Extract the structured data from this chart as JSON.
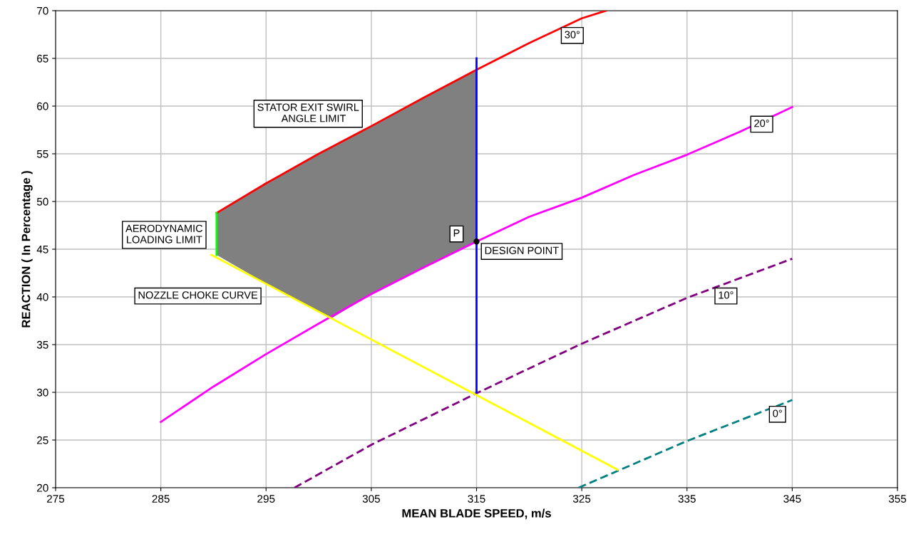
{
  "chart_data": {
    "type": "line",
    "xlabel": "MEAN BLADE SPEED, m/s",
    "ylabel": "REACTION ( In Percentage )",
    "xlim": [
      275,
      355
    ],
    "xticks": [
      275,
      285,
      295,
      305,
      315,
      325,
      335,
      345,
      355
    ],
    "ylim": [
      20,
      70
    ],
    "yticks": [
      20,
      25,
      30,
      35,
      40,
      45,
      50,
      55,
      60,
      65,
      70
    ],
    "grid": true,
    "legend": false,
    "series": [
      {
        "type": "area",
        "color": "#808080",
        "x": [
          290.3,
          295,
          300,
          305,
          310,
          315,
          315,
          310,
          305,
          301.3,
          300,
          295,
          290.3
        ],
        "values": [
          48.8,
          51.9,
          55.0,
          57.9,
          60.9,
          63.8,
          45.8,
          43.1,
          40.3,
          37.8,
          38.5,
          41.4,
          44.4
        ]
      },
      {
        "color": "#ff0000",
        "line_style": "solid",
        "x": [
          290.3,
          295,
          300,
          305,
          310,
          315,
          320,
          325,
          327.3
        ],
        "values": [
          48.8,
          51.9,
          55.0,
          57.9,
          60.9,
          63.8,
          66.6,
          69.2,
          70
        ]
      },
      {
        "color": "#ff00ff",
        "line_style": "solid",
        "x": [
          285,
          290,
          295,
          300,
          305,
          310,
          315,
          320,
          325,
          330,
          335,
          340,
          345
        ],
        "values": [
          26.9,
          30.6,
          34.0,
          37.2,
          40.3,
          43.1,
          45.8,
          48.4,
          50.4,
          52.8,
          54.9,
          57.3,
          59.9
        ]
      },
      {
        "color": "#800080",
        "line_style": "dashed",
        "x": [
          297.7,
          305,
          315,
          325,
          335,
          345
        ],
        "values": [
          20,
          24.5,
          29.9,
          35.1,
          39.9,
          44.0
        ]
      },
      {
        "color": "#008080",
        "line_style": "dashed",
        "x": [
          324.7,
          335,
          345
        ],
        "values": [
          20,
          24.9,
          29.2
        ]
      },
      {
        "color": "#ffff00",
        "line_style": "solid",
        "x": [
          289.8,
          328.4
        ],
        "values": [
          44.4,
          21.9
        ]
      },
      {
        "color": "#00ff00",
        "line_style": "solid",
        "x": [
          290.3,
          290.3
        ],
        "values": [
          44.4,
          48.8
        ]
      },
      {
        "color": "#0000ff",
        "line_style": "solid",
        "x": [
          315,
          315
        ],
        "values": [
          30,
          65
        ]
      },
      {
        "type": "scatter",
        "color": "#000000",
        "marker": "circle",
        "x": [
          315
        ],
        "values": [
          45.8
        ]
      }
    ],
    "annotations": [
      {
        "text": "30°",
        "x": 324.1,
        "y": 67.4
      },
      {
        "text": "20°",
        "x": 342.1,
        "y": 58.1
      },
      {
        "text": "10°",
        "x": 338.7,
        "y": 40.1
      },
      {
        "text": "0°",
        "x": 343.6,
        "y": 27.7
      },
      "STATOR EXIT SWIRL\n    ANGLE LIMIT",
      "AERODYNAMIC\nLOADING LIMIT",
      "NOZZLE CHOKE CURVE",
      {
        "text": "P",
        "x": 313.1,
        "y": 46.6
      },
      {
        "text": "DESIGN POINT",
        "x": 315,
        "y": 45.8
      }
    ]
  }
}
